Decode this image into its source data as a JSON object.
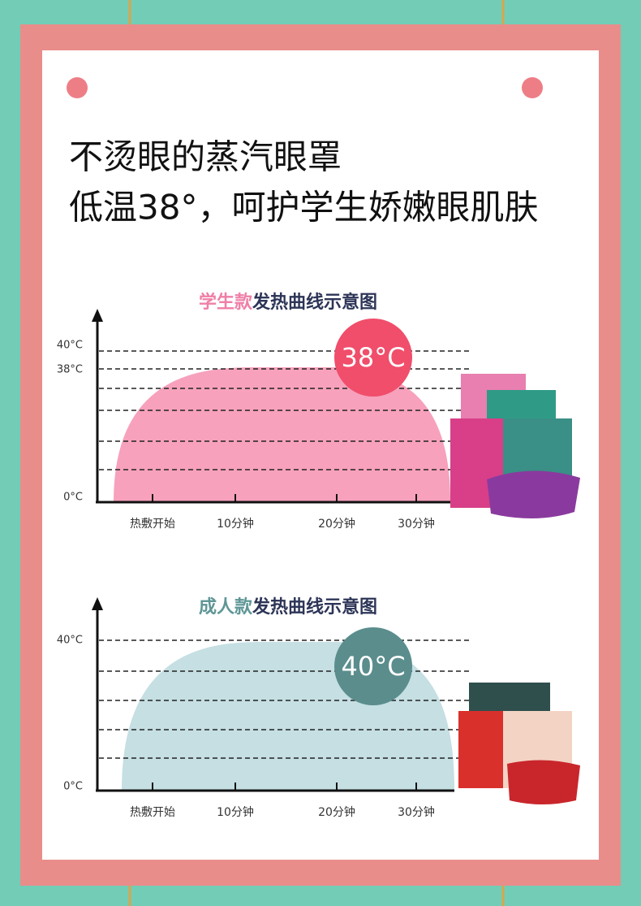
{
  "headline": [
    "不烫眼的蒸汽眼罩",
    "低温38°，呵护学生娇嫩眼肌肤"
  ],
  "panels": [
    {
      "title_accent": "学生款",
      "title_rest": "发热曲线示意图",
      "y_labels": [
        "40°C",
        "38°C",
        "0°C"
      ],
      "x_labels": [
        "热敷开始",
        "10分钟",
        "20分钟",
        "30分钟"
      ],
      "badge": "38°C"
    },
    {
      "title_accent": "成人款",
      "title_rest": "发热曲线示意图",
      "y_labels": [
        "40°C",
        "0°C"
      ],
      "x_labels": [
        "热敷开始",
        "10分钟",
        "20分钟",
        "30分钟"
      ],
      "badge": "40°C"
    }
  ]
}
